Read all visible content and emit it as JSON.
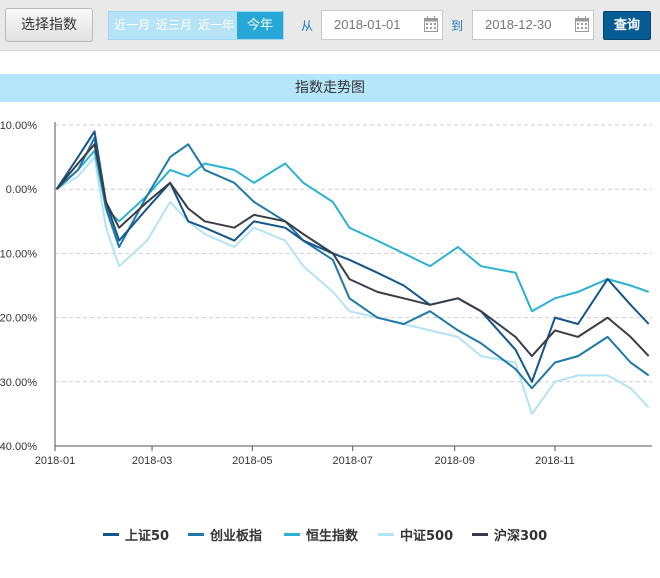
{
  "toolbar": {
    "select_label": "选择指数",
    "periods": [
      "近一月",
      "近三月",
      "近一年",
      "今年"
    ],
    "active_period": "今年",
    "from_label": "从",
    "from_date": "2018-01-01",
    "to_label": "到",
    "to_date": "2018-12-30",
    "query_label": "查询"
  },
  "colors": {
    "上证50": "#13558c",
    "创业板指": "#1f79a8",
    "恒生指数": "#2cb1d5",
    "中证500": "#b3e3f5",
    "沪深300": "#3a3d44"
  },
  "chart_data": {
    "type": "line",
    "title": "指数走势图",
    "x": [
      "2018-01-02",
      "2018-01-15",
      "2018-01-25",
      "2018-02-01",
      "2018-02-09",
      "2018-02-26",
      "2018-03-12",
      "2018-03-23",
      "2018-04-02",
      "2018-04-20",
      "2018-05-02",
      "2018-05-21",
      "2018-06-01",
      "2018-06-19",
      "2018-06-29",
      "2018-07-16",
      "2018-08-01",
      "2018-08-17",
      "2018-09-03",
      "2018-09-17",
      "2018-10-08",
      "2018-10-18",
      "2018-11-01",
      "2018-11-15",
      "2018-12-03",
      "2018-12-17",
      "2018-12-28"
    ],
    "x_ticks": [
      "2018-01",
      "2018-03",
      "2018-05",
      "2018-07",
      "2018-09",
      "2018-11"
    ],
    "y_ticks": [
      "10.00%",
      "0.00%",
      "-10.00%",
      "-20.00%",
      "-30.00%",
      "-40.00%"
    ],
    "ylim": [
      -40,
      10
    ],
    "ylabel": "",
    "xlabel": "",
    "grid": true,
    "legend_position": "bottom",
    "series": [
      {
        "name": "上证50",
        "values": [
          0,
          5,
          9,
          -2,
          -8,
          -3,
          1,
          -5,
          -6,
          -8,
          -5,
          -6,
          -8,
          -10,
          -11,
          -13,
          -15,
          -18,
          -17,
          -19,
          -25,
          -30,
          -20,
          -21,
          -14,
          -18,
          -21
        ]
      },
      {
        "name": "创业板指",
        "values": [
          0,
          3,
          8,
          -3,
          -9,
          -1,
          5,
          7,
          3,
          1,
          -2,
          -5,
          -8,
          -11,
          -17,
          -20,
          -21,
          -19,
          -22,
          -24,
          -28,
          -31,
          -27,
          -26,
          -23,
          -27,
          -29
        ]
      },
      {
        "name": "恒生指数",
        "values": [
          0,
          3,
          6,
          -3,
          -5,
          -1,
          3,
          2,
          4,
          3,
          1,
          4,
          1,
          -2,
          -6,
          -8,
          -10,
          -12,
          -9,
          -12,
          -13,
          -19,
          -17,
          -16,
          -14,
          -15,
          -16
        ]
      },
      {
        "name": "中证500",
        "values": [
          0,
          2,
          5,
          -6,
          -12,
          -8,
          -2,
          -5,
          -7,
          -9,
          -6,
          -8,
          -12,
          -16,
          -19,
          -20,
          -21,
          -22,
          -23,
          -26,
          -27,
          -35,
          -30,
          -29,
          -29,
          -31,
          -34
        ]
      },
      {
        "name": "沪深300",
        "values": [
          0,
          4,
          7,
          -2,
          -6,
          -2,
          1,
          -3,
          -5,
          -6,
          -4,
          -5,
          -7,
          -10,
          -14,
          -16,
          -17,
          -18,
          -17,
          -19,
          -23,
          -26,
          -22,
          -23,
          -20,
          -23,
          -26
        ]
      }
    ]
  }
}
